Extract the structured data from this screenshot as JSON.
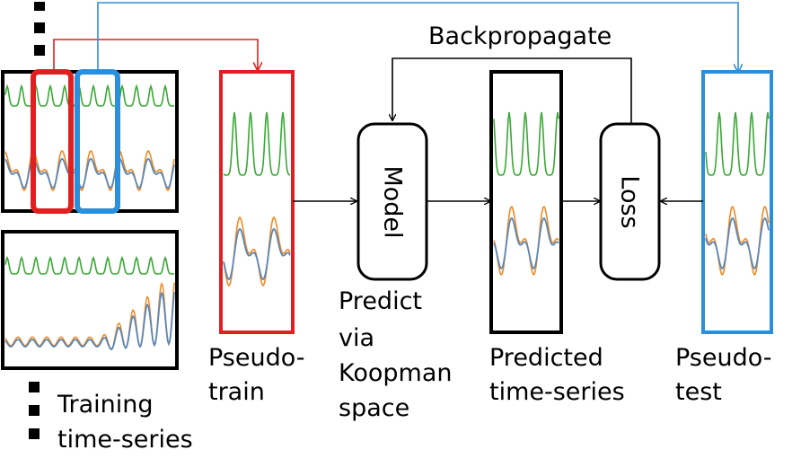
{
  "labels": {
    "backpropagate": "Backpropagate",
    "model": "Model",
    "loss": "Loss",
    "pseudo_train": [
      "Pseudo-",
      "train"
    ],
    "predict": [
      "Predict",
      "via",
      "Koopman",
      "space"
    ],
    "predicted": [
      "Predicted",
      "time-series"
    ],
    "pseudo_test": [
      "Pseudo-",
      "test"
    ],
    "training": [
      "Training",
      "time-series"
    ]
  },
  "colors": {
    "green": "#3aa835",
    "orange": "#f08a24",
    "steel": "#5b87b7",
    "red": "#e02020",
    "blue": "#2a8fdd",
    "black": "#000000"
  }
}
